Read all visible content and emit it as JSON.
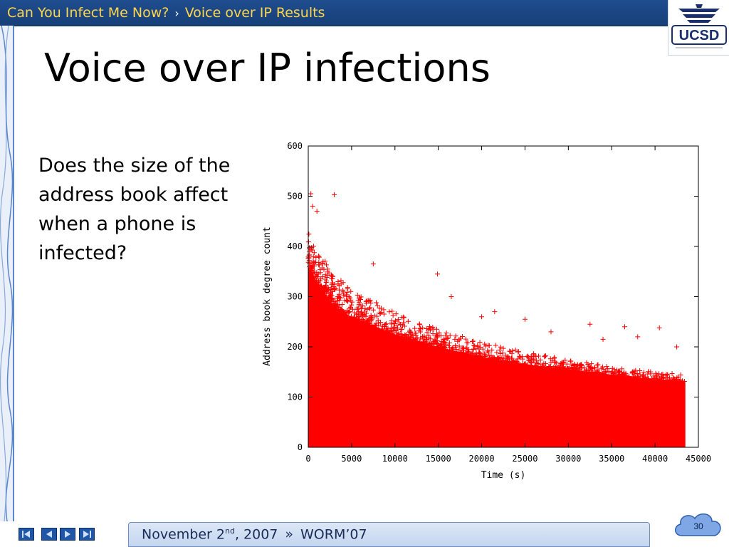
{
  "header": {
    "crumb1": "Can You Infect Me Now?",
    "separator": "›",
    "crumb2": "Voice over IP Results",
    "logo_text": "UCSD"
  },
  "title": "Voice over IP infections",
  "body_text": "Does the size of the address book affect when a phone is infected?",
  "footer": {
    "date_prefix": "November 2",
    "date_sup": "nd",
    "date_suffix": ", 2007",
    "separator": "»",
    "event": "WORM’07",
    "page_number": "30"
  },
  "colors": {
    "header_bg": "#1f4d8f",
    "breadcrumb_text": "#ffd54a",
    "marker": "#ff0000",
    "footer_bar": "#c4d6ef"
  },
  "icons": [
    "first-slide-icon",
    "prev-slide-icon",
    "next-slide-icon",
    "last-slide-icon",
    "cloud-icon"
  ],
  "chart_data": {
    "type": "scatter",
    "marker": "+",
    "xlabel": "Time (s)",
    "ylabel": "Address book degree count",
    "xlim": [
      0,
      45000
    ],
    "ylim": [
      0,
      600
    ],
    "xticks": [
      0,
      5000,
      10000,
      15000,
      20000,
      25000,
      30000,
      35000,
      40000,
      45000
    ],
    "yticks": [
      0,
      100,
      200,
      300,
      400,
      500,
      600
    ],
    "grid": false,
    "data_range": {
      "x_min": 0,
      "x_max": 43500
    },
    "upper_envelope": {
      "x": [
        0,
        500,
        1000,
        2000,
        3000,
        5000,
        7000,
        10000,
        13000,
        15000,
        20000,
        25000,
        30000,
        35000,
        40000,
        43500
      ],
      "y": [
        430,
        410,
        400,
        370,
        345,
        315,
        295,
        270,
        250,
        235,
        210,
        190,
        175,
        160,
        150,
        145
      ]
    },
    "dense_band_ceiling": {
      "x": [
        0,
        1000,
        3000,
        5000,
        10000,
        15000,
        20000,
        25000,
        30000,
        35000,
        40000,
        43500
      ],
      "y": [
        360,
        330,
        280,
        260,
        225,
        200,
        180,
        165,
        155,
        145,
        135,
        130
      ]
    },
    "outliers": [
      {
        "x": 300,
        "y": 505
      },
      {
        "x": 3000,
        "y": 503
      },
      {
        "x": 500,
        "y": 480
      },
      {
        "x": 1000,
        "y": 470
      },
      {
        "x": 7500,
        "y": 365
      },
      {
        "x": 14900,
        "y": 345
      },
      {
        "x": 16500,
        "y": 300
      },
      {
        "x": 21500,
        "y": 270
      },
      {
        "x": 25000,
        "y": 255
      },
      {
        "x": 32500,
        "y": 245
      },
      {
        "x": 36500,
        "y": 240
      },
      {
        "x": 40500,
        "y": 238
      },
      {
        "x": 42500,
        "y": 200
      },
      {
        "x": 20000,
        "y": 260
      },
      {
        "x": 28000,
        "y": 230
      },
      {
        "x": 34000,
        "y": 215
      },
      {
        "x": 38000,
        "y": 220
      }
    ]
  }
}
